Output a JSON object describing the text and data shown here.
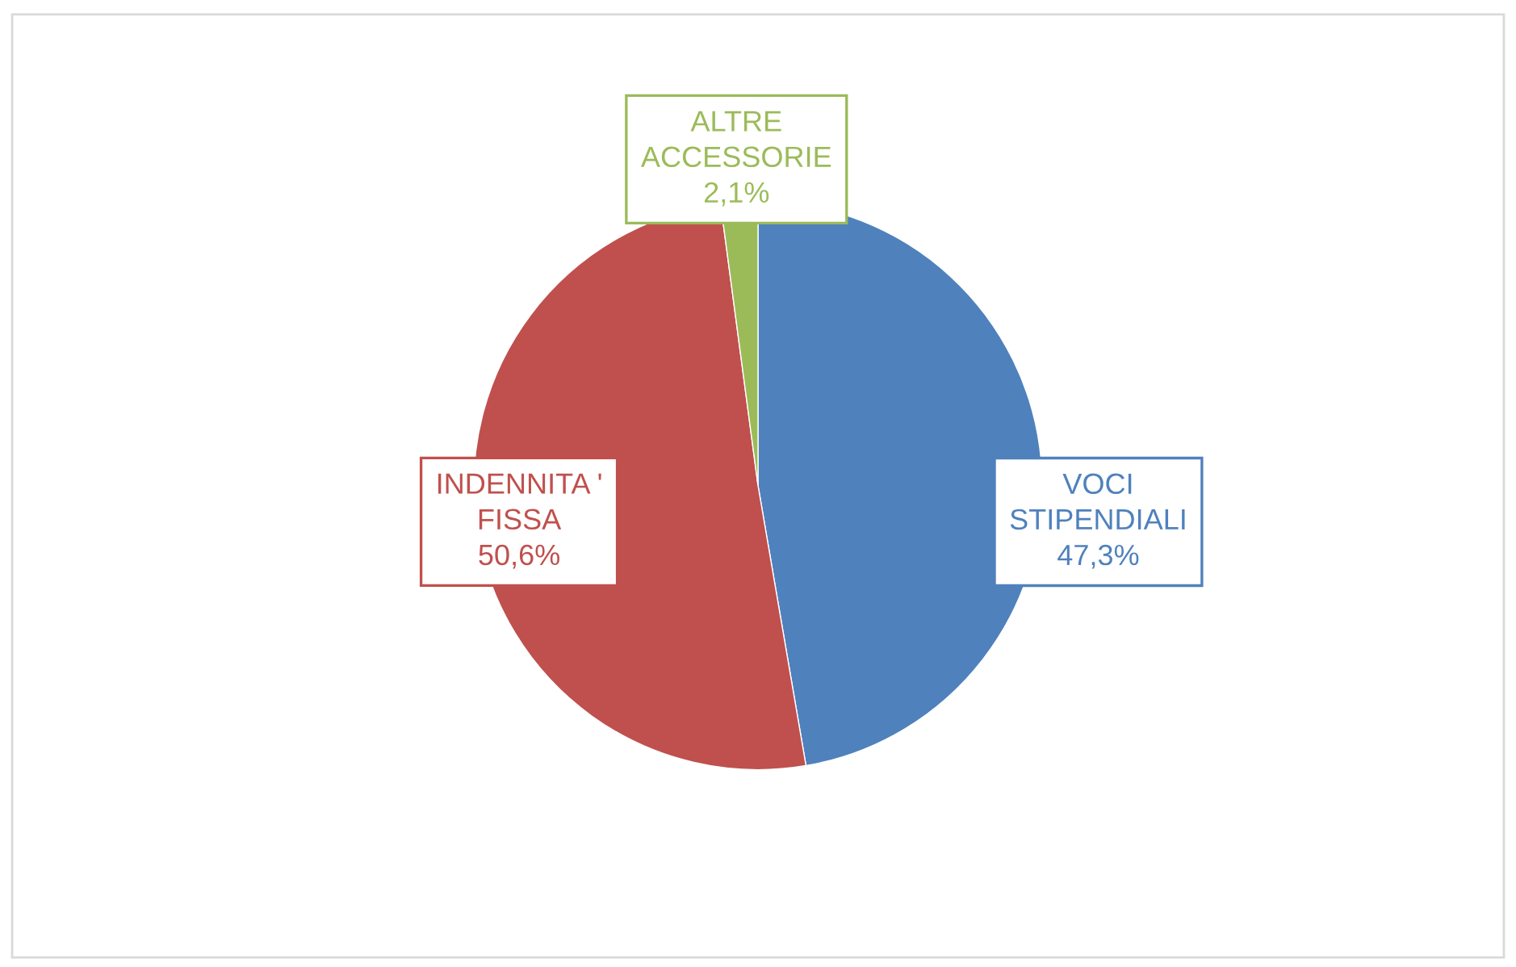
{
  "chart_data": {
    "type": "pie",
    "categories": [
      "VOCI STIPENDIALI",
      "INDENNITA ' FISSA",
      "ALTRE ACCESSORIE"
    ],
    "values": [
      47.3,
      50.6,
      2.1
    ],
    "value_labels": [
      "47,3%",
      "50,6%",
      "2,1%"
    ],
    "colors": [
      "#4f81bd",
      "#c0504d",
      "#9bbb59"
    ]
  }
}
